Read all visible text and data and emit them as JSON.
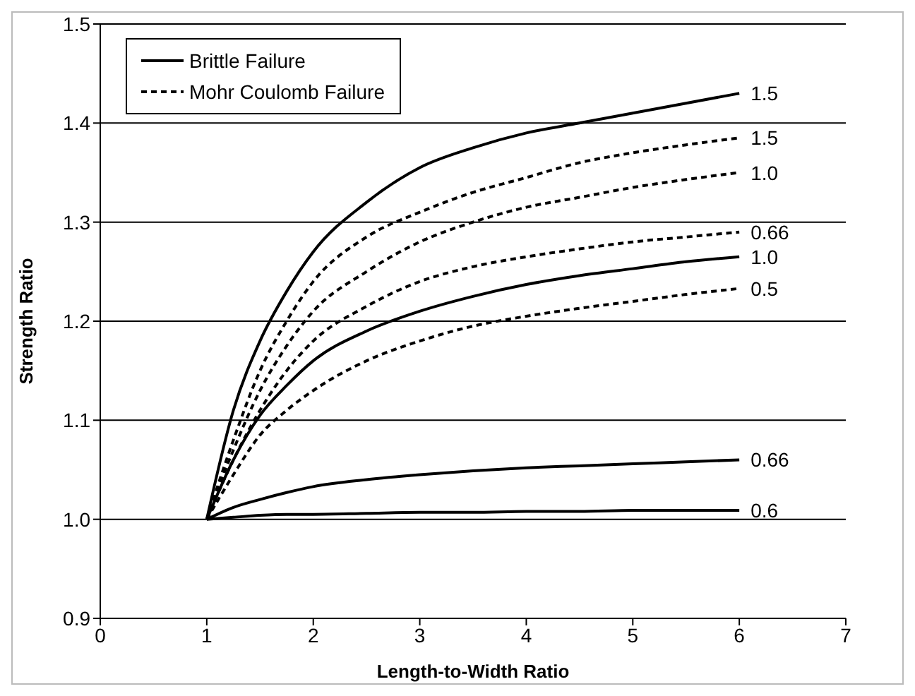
{
  "chart_data": {
    "type": "line",
    "xlabel": "Length-to-Width Ratio",
    "ylabel": "Strength Ratio",
    "x": [
      1,
      1.25,
      1.5,
      1.75,
      2,
      2.5,
      3,
      3.5,
      4,
      4.5,
      5,
      5.5,
      6
    ],
    "xlim": [
      0,
      7
    ],
    "xticks": [
      0,
      1,
      2,
      3,
      4,
      5,
      6,
      7
    ],
    "ylim": [
      0.9,
      1.5
    ],
    "yticks": [
      {
        "value": 0.9,
        "label": "0.9"
      },
      {
        "value": 1.0,
        "label": "1.0"
      },
      {
        "value": 1.1,
        "label": "1.1"
      },
      {
        "value": 1.2,
        "label": "1.2"
      },
      {
        "value": 1.3,
        "label": "1.3"
      },
      {
        "value": 1.4,
        "label": "1.4"
      },
      {
        "value": 1.5,
        "label": "1.5"
      }
    ],
    "grid": "y",
    "legend": "top left",
    "marker": "none",
    "annotations": [
      "1.5",
      "1.5",
      "1.0",
      "0.66",
      "1.0",
      "0.5",
      "0.66",
      "0.6"
    ],
    "series": [
      {
        "name": "Brittle Failure",
        "color": "#000000",
        "line_style": "solid",
        "values": [
          1.0,
          1.11,
          1.18,
          1.23,
          1.27,
          1.32,
          1.355,
          1.375,
          1.39,
          1.4,
          1.41,
          1.42,
          1.43
        ]
      },
      {
        "name": "Mohr Coulomb Failure",
        "color": "#000000",
        "line_style": "dashed",
        "values": [
          1.0,
          1.08,
          1.15,
          1.2,
          1.24,
          1.285,
          1.31,
          1.33,
          1.345,
          1.36,
          1.37,
          1.378,
          1.385
        ]
      },
      {
        "color": "#000000",
        "line_style": "dashed",
        "values": [
          1.0,
          1.07,
          1.13,
          1.175,
          1.21,
          1.25,
          1.28,
          1.3,
          1.315,
          1.325,
          1.335,
          1.343,
          1.35
        ]
      },
      {
        "color": "#000000",
        "line_style": "dashed",
        "values": [
          1.0,
          1.06,
          1.11,
          1.15,
          1.18,
          1.215,
          1.24,
          1.255,
          1.265,
          1.273,
          1.28,
          1.285,
          1.29
        ]
      },
      {
        "color": "#000000",
        "line_style": "solid",
        "values": [
          1.0,
          1.06,
          1.105,
          1.135,
          1.16,
          1.19,
          1.21,
          1.225,
          1.237,
          1.246,
          1.253,
          1.26,
          1.265
        ]
      },
      {
        "color": "#000000",
        "line_style": "dashed",
        "values": [
          1.0,
          1.045,
          1.085,
          1.11,
          1.13,
          1.16,
          1.18,
          1.195,
          1.205,
          1.213,
          1.22,
          1.227,
          1.233
        ]
      },
      {
        "color": "#000000",
        "line_style": "solid",
        "values": [
          1.0,
          1.012,
          1.02,
          1.027,
          1.033,
          1.04,
          1.045,
          1.049,
          1.052,
          1.054,
          1.056,
          1.058,
          1.06
        ]
      },
      {
        "color": "#000000",
        "line_style": "solid",
        "values": [
          1.0,
          1.002,
          1.004,
          1.005,
          1.005,
          1.006,
          1.007,
          1.007,
          1.008,
          1.008,
          1.009,
          1.009,
          1.009
        ]
      }
    ]
  }
}
